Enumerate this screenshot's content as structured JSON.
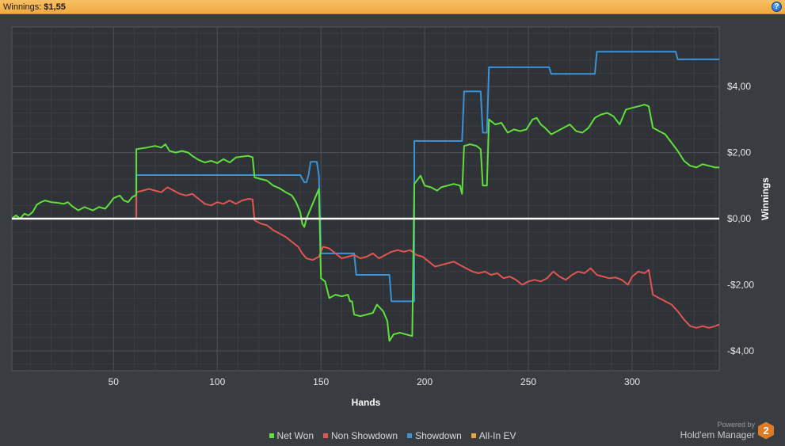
{
  "header": {
    "label": "Winnings:",
    "value": "$1,55",
    "help_icon": "?"
  },
  "chart_data": {
    "type": "line",
    "xlabel": "Hands",
    "ylabel": "Winnings",
    "xlim": [
      1,
      342
    ],
    "ylim": [
      -4.6,
      5.8
    ],
    "x_ticks": [
      50,
      100,
      150,
      200,
      250,
      300
    ],
    "y_ticks": [
      4,
      2,
      0,
      -2,
      -4
    ],
    "y_tick_labels": [
      "$4,00",
      "$2,00",
      "$0,00",
      "-$2,00",
      "-$4,00"
    ],
    "grid": true,
    "zero_line": true,
    "legend_position": "bottom-center",
    "series": [
      {
        "name": "Showdown",
        "color": "#3a93d8",
        "points": [
          [
            1,
            0
          ],
          [
            61,
            0
          ],
          [
            61,
            1.32
          ],
          [
            140,
            1.32
          ],
          [
            142,
            1.1
          ],
          [
            143,
            1.1
          ],
          [
            144,
            1.32
          ],
          [
            145,
            1.72
          ],
          [
            148,
            1.72
          ],
          [
            149,
            1.3
          ],
          [
            150,
            -1.05
          ],
          [
            166,
            -1.05
          ],
          [
            167,
            -1.7
          ],
          [
            183,
            -1.7
          ],
          [
            184,
            -2.5
          ],
          [
            195,
            -2.5
          ],
          [
            195,
            2.35
          ],
          [
            218,
            2.35
          ],
          [
            219,
            3.85
          ],
          [
            227,
            3.85
          ],
          [
            228,
            2.6
          ],
          [
            230,
            2.6
          ],
          [
            231,
            4.58
          ],
          [
            260,
            4.58
          ],
          [
            261,
            4.38
          ],
          [
            282,
            4.38
          ],
          [
            283,
            5.05
          ],
          [
            321,
            5.05
          ],
          [
            322,
            4.82
          ],
          [
            342,
            4.82
          ]
        ]
      },
      {
        "name": "Net Won",
        "color": "#5fe03a",
        "points": [
          [
            1,
            0
          ],
          [
            3,
            0.1
          ],
          [
            5,
            0
          ],
          [
            7,
            0.15
          ],
          [
            9,
            0.1
          ],
          [
            11,
            0.2
          ],
          [
            13,
            0.42
          ],
          [
            15,
            0.5
          ],
          [
            17,
            0.55
          ],
          [
            20,
            0.5
          ],
          [
            23,
            0.48
          ],
          [
            26,
            0.45
          ],
          [
            28,
            0.5
          ],
          [
            30,
            0.38
          ],
          [
            33,
            0.25
          ],
          [
            36,
            0.35
          ],
          [
            38,
            0.3
          ],
          [
            40,
            0.25
          ],
          [
            43,
            0.35
          ],
          [
            46,
            0.3
          ],
          [
            48,
            0.45
          ],
          [
            50,
            0.62
          ],
          [
            53,
            0.7
          ],
          [
            55,
            0.55
          ],
          [
            57,
            0.5
          ],
          [
            59,
            0.65
          ],
          [
            61,
            0.72
          ],
          [
            61,
            2.1
          ],
          [
            66,
            2.15
          ],
          [
            70,
            2.2
          ],
          [
            73,
            2.15
          ],
          [
            75,
            2.25
          ],
          [
            77,
            2.05
          ],
          [
            80,
            2.0
          ],
          [
            83,
            2.05
          ],
          [
            86,
            2.0
          ],
          [
            88,
            1.9
          ],
          [
            91,
            1.78
          ],
          [
            94,
            1.7
          ],
          [
            97,
            1.75
          ],
          [
            100,
            1.68
          ],
          [
            103,
            1.8
          ],
          [
            106,
            1.7
          ],
          [
            109,
            1.85
          ],
          [
            112,
            1.88
          ],
          [
            115,
            1.9
          ],
          [
            117,
            1.86
          ],
          [
            118,
            1.25
          ],
          [
            121,
            1.2
          ],
          [
            124,
            1.15
          ],
          [
            127,
            1.0
          ],
          [
            130,
            0.92
          ],
          [
            133,
            0.8
          ],
          [
            136,
            0.7
          ],
          [
            138,
            0.5
          ],
          [
            140,
            0.2
          ],
          [
            141,
            -0.15
          ],
          [
            142,
            -0.25
          ],
          [
            143,
            0.0
          ],
          [
            145,
            0.3
          ],
          [
            147,
            0.6
          ],
          [
            149,
            0.9
          ],
          [
            150,
            -1.8
          ],
          [
            152,
            -1.9
          ],
          [
            154,
            -2.4
          ],
          [
            157,
            -2.3
          ],
          [
            160,
            -2.35
          ],
          [
            163,
            -2.3
          ],
          [
            164,
            -2.5
          ],
          [
            165,
            -2.5
          ],
          [
            166,
            -2.9
          ],
          [
            169,
            -2.95
          ],
          [
            172,
            -2.9
          ],
          [
            175,
            -2.85
          ],
          [
            177,
            -2.6
          ],
          [
            180,
            -2.8
          ],
          [
            182,
            -3.1
          ],
          [
            183,
            -3.7
          ],
          [
            185,
            -3.5
          ],
          [
            188,
            -3.45
          ],
          [
            191,
            -3.5
          ],
          [
            194,
            -3.55
          ],
          [
            195,
            1.05
          ],
          [
            198,
            1.3
          ],
          [
            200,
            1.0
          ],
          [
            203,
            0.95
          ],
          [
            206,
            0.85
          ],
          [
            208,
            0.95
          ],
          [
            211,
            1.0
          ],
          [
            214,
            1.05
          ],
          [
            217,
            1.0
          ],
          [
            218,
            0.75
          ],
          [
            219,
            2.2
          ],
          [
            222,
            2.25
          ],
          [
            225,
            2.2
          ],
          [
            227,
            2.1
          ],
          [
            228,
            1.0
          ],
          [
            230,
            1.0
          ],
          [
            231,
            3.0
          ],
          [
            234,
            2.85
          ],
          [
            237,
            2.9
          ],
          [
            240,
            2.6
          ],
          [
            243,
            2.7
          ],
          [
            246,
            2.65
          ],
          [
            249,
            2.7
          ],
          [
            252,
            3.0
          ],
          [
            254,
            3.05
          ],
          [
            256,
            2.85
          ],
          [
            258,
            2.75
          ],
          [
            261,
            2.55
          ],
          [
            264,
            2.65
          ],
          [
            267,
            2.75
          ],
          [
            270,
            2.85
          ],
          [
            273,
            2.65
          ],
          [
            276,
            2.6
          ],
          [
            279,
            2.75
          ],
          [
            282,
            3.05
          ],
          [
            285,
            3.15
          ],
          [
            288,
            3.2
          ],
          [
            291,
            3.1
          ],
          [
            294,
            2.85
          ],
          [
            297,
            3.3
          ],
          [
            300,
            3.35
          ],
          [
            303,
            3.4
          ],
          [
            306,
            3.45
          ],
          [
            308,
            3.4
          ],
          [
            310,
            2.75
          ],
          [
            313,
            2.65
          ],
          [
            316,
            2.55
          ],
          [
            319,
            2.3
          ],
          [
            322,
            2.05
          ],
          [
            325,
            1.75
          ],
          [
            328,
            1.6
          ],
          [
            331,
            1.55
          ],
          [
            334,
            1.65
          ],
          [
            337,
            1.6
          ],
          [
            340,
            1.55
          ],
          [
            342,
            1.55
          ]
        ]
      },
      {
        "name": "Non Showdown",
        "color": "#e25550",
        "points": [
          [
            61,
            0
          ],
          [
            61,
            0.8
          ],
          [
            64,
            0.85
          ],
          [
            67,
            0.9
          ],
          [
            70,
            0.85
          ],
          [
            73,
            0.8
          ],
          [
            76,
            0.95
          ],
          [
            79,
            0.85
          ],
          [
            82,
            0.75
          ],
          [
            85,
            0.7
          ],
          [
            88,
            0.75
          ],
          [
            91,
            0.6
          ],
          [
            94,
            0.45
          ],
          [
            97,
            0.4
          ],
          [
            100,
            0.5
          ],
          [
            103,
            0.45
          ],
          [
            106,
            0.55
          ],
          [
            109,
            0.45
          ],
          [
            112,
            0.55
          ],
          [
            115,
            0.6
          ],
          [
            117,
            0.58
          ],
          [
            118,
            -0.05
          ],
          [
            121,
            -0.15
          ],
          [
            124,
            -0.2
          ],
          [
            127,
            -0.35
          ],
          [
            130,
            -0.45
          ],
          [
            133,
            -0.55
          ],
          [
            136,
            -0.7
          ],
          [
            139,
            -0.85
          ],
          [
            141,
            -1.05
          ],
          [
            143,
            -1.2
          ],
          [
            146,
            -1.25
          ],
          [
            149,
            -1.15
          ],
          [
            151,
            -0.85
          ],
          [
            154,
            -0.9
          ],
          [
            157,
            -1.05
          ],
          [
            160,
            -1.2
          ],
          [
            163,
            -1.15
          ],
          [
            166,
            -1.1
          ],
          [
            169,
            -1.2
          ],
          [
            172,
            -1.15
          ],
          [
            175,
            -1.05
          ],
          [
            178,
            -1.2
          ],
          [
            181,
            -1.1
          ],
          [
            184,
            -1.0
          ],
          [
            187,
            -0.95
          ],
          [
            190,
            -1.0
          ],
          [
            193,
            -0.95
          ],
          [
            196,
            -1.1
          ],
          [
            199,
            -1.15
          ],
          [
            202,
            -1.3
          ],
          [
            205,
            -1.45
          ],
          [
            208,
            -1.4
          ],
          [
            211,
            -1.35
          ],
          [
            214,
            -1.3
          ],
          [
            217,
            -1.4
          ],
          [
            220,
            -1.5
          ],
          [
            223,
            -1.6
          ],
          [
            226,
            -1.65
          ],
          [
            229,
            -1.6
          ],
          [
            232,
            -1.7
          ],
          [
            235,
            -1.65
          ],
          [
            238,
            -1.8
          ],
          [
            241,
            -1.75
          ],
          [
            244,
            -1.85
          ],
          [
            247,
            -2.0
          ],
          [
            250,
            -1.9
          ],
          [
            253,
            -1.85
          ],
          [
            256,
            -1.9
          ],
          [
            259,
            -1.8
          ],
          [
            262,
            -1.6
          ],
          [
            265,
            -1.75
          ],
          [
            268,
            -1.85
          ],
          [
            271,
            -1.7
          ],
          [
            274,
            -1.6
          ],
          [
            277,
            -1.65
          ],
          [
            280,
            -1.5
          ],
          [
            283,
            -1.7
          ],
          [
            286,
            -1.75
          ],
          [
            289,
            -1.8
          ],
          [
            292,
            -1.78
          ],
          [
            295,
            -1.85
          ],
          [
            298,
            -2.0
          ],
          [
            300,
            -1.75
          ],
          [
            303,
            -1.6
          ],
          [
            306,
            -1.65
          ],
          [
            308,
            -1.55
          ],
          [
            310,
            -2.3
          ],
          [
            313,
            -2.4
          ],
          [
            316,
            -2.5
          ],
          [
            319,
            -2.6
          ],
          [
            322,
            -2.8
          ],
          [
            325,
            -3.05
          ],
          [
            328,
            -3.25
          ],
          [
            331,
            -3.3
          ],
          [
            334,
            -3.25
          ],
          [
            337,
            -3.3
          ],
          [
            340,
            -3.25
          ],
          [
            342,
            -3.2
          ]
        ]
      },
      {
        "name": "All-In EV",
        "color": "#f0a23a",
        "points": []
      }
    ]
  },
  "legend": [
    {
      "label": "Net Won",
      "color": "#5fe03a"
    },
    {
      "label": "Non Showdown",
      "color": "#e25550"
    },
    {
      "label": "Showdown",
      "color": "#3a93d8"
    },
    {
      "label": "All-In EV",
      "color": "#f0a23a"
    }
  ],
  "branding": {
    "powered_by": "Powered by",
    "product": "Hold'em Manager",
    "logo_text": "2"
  }
}
